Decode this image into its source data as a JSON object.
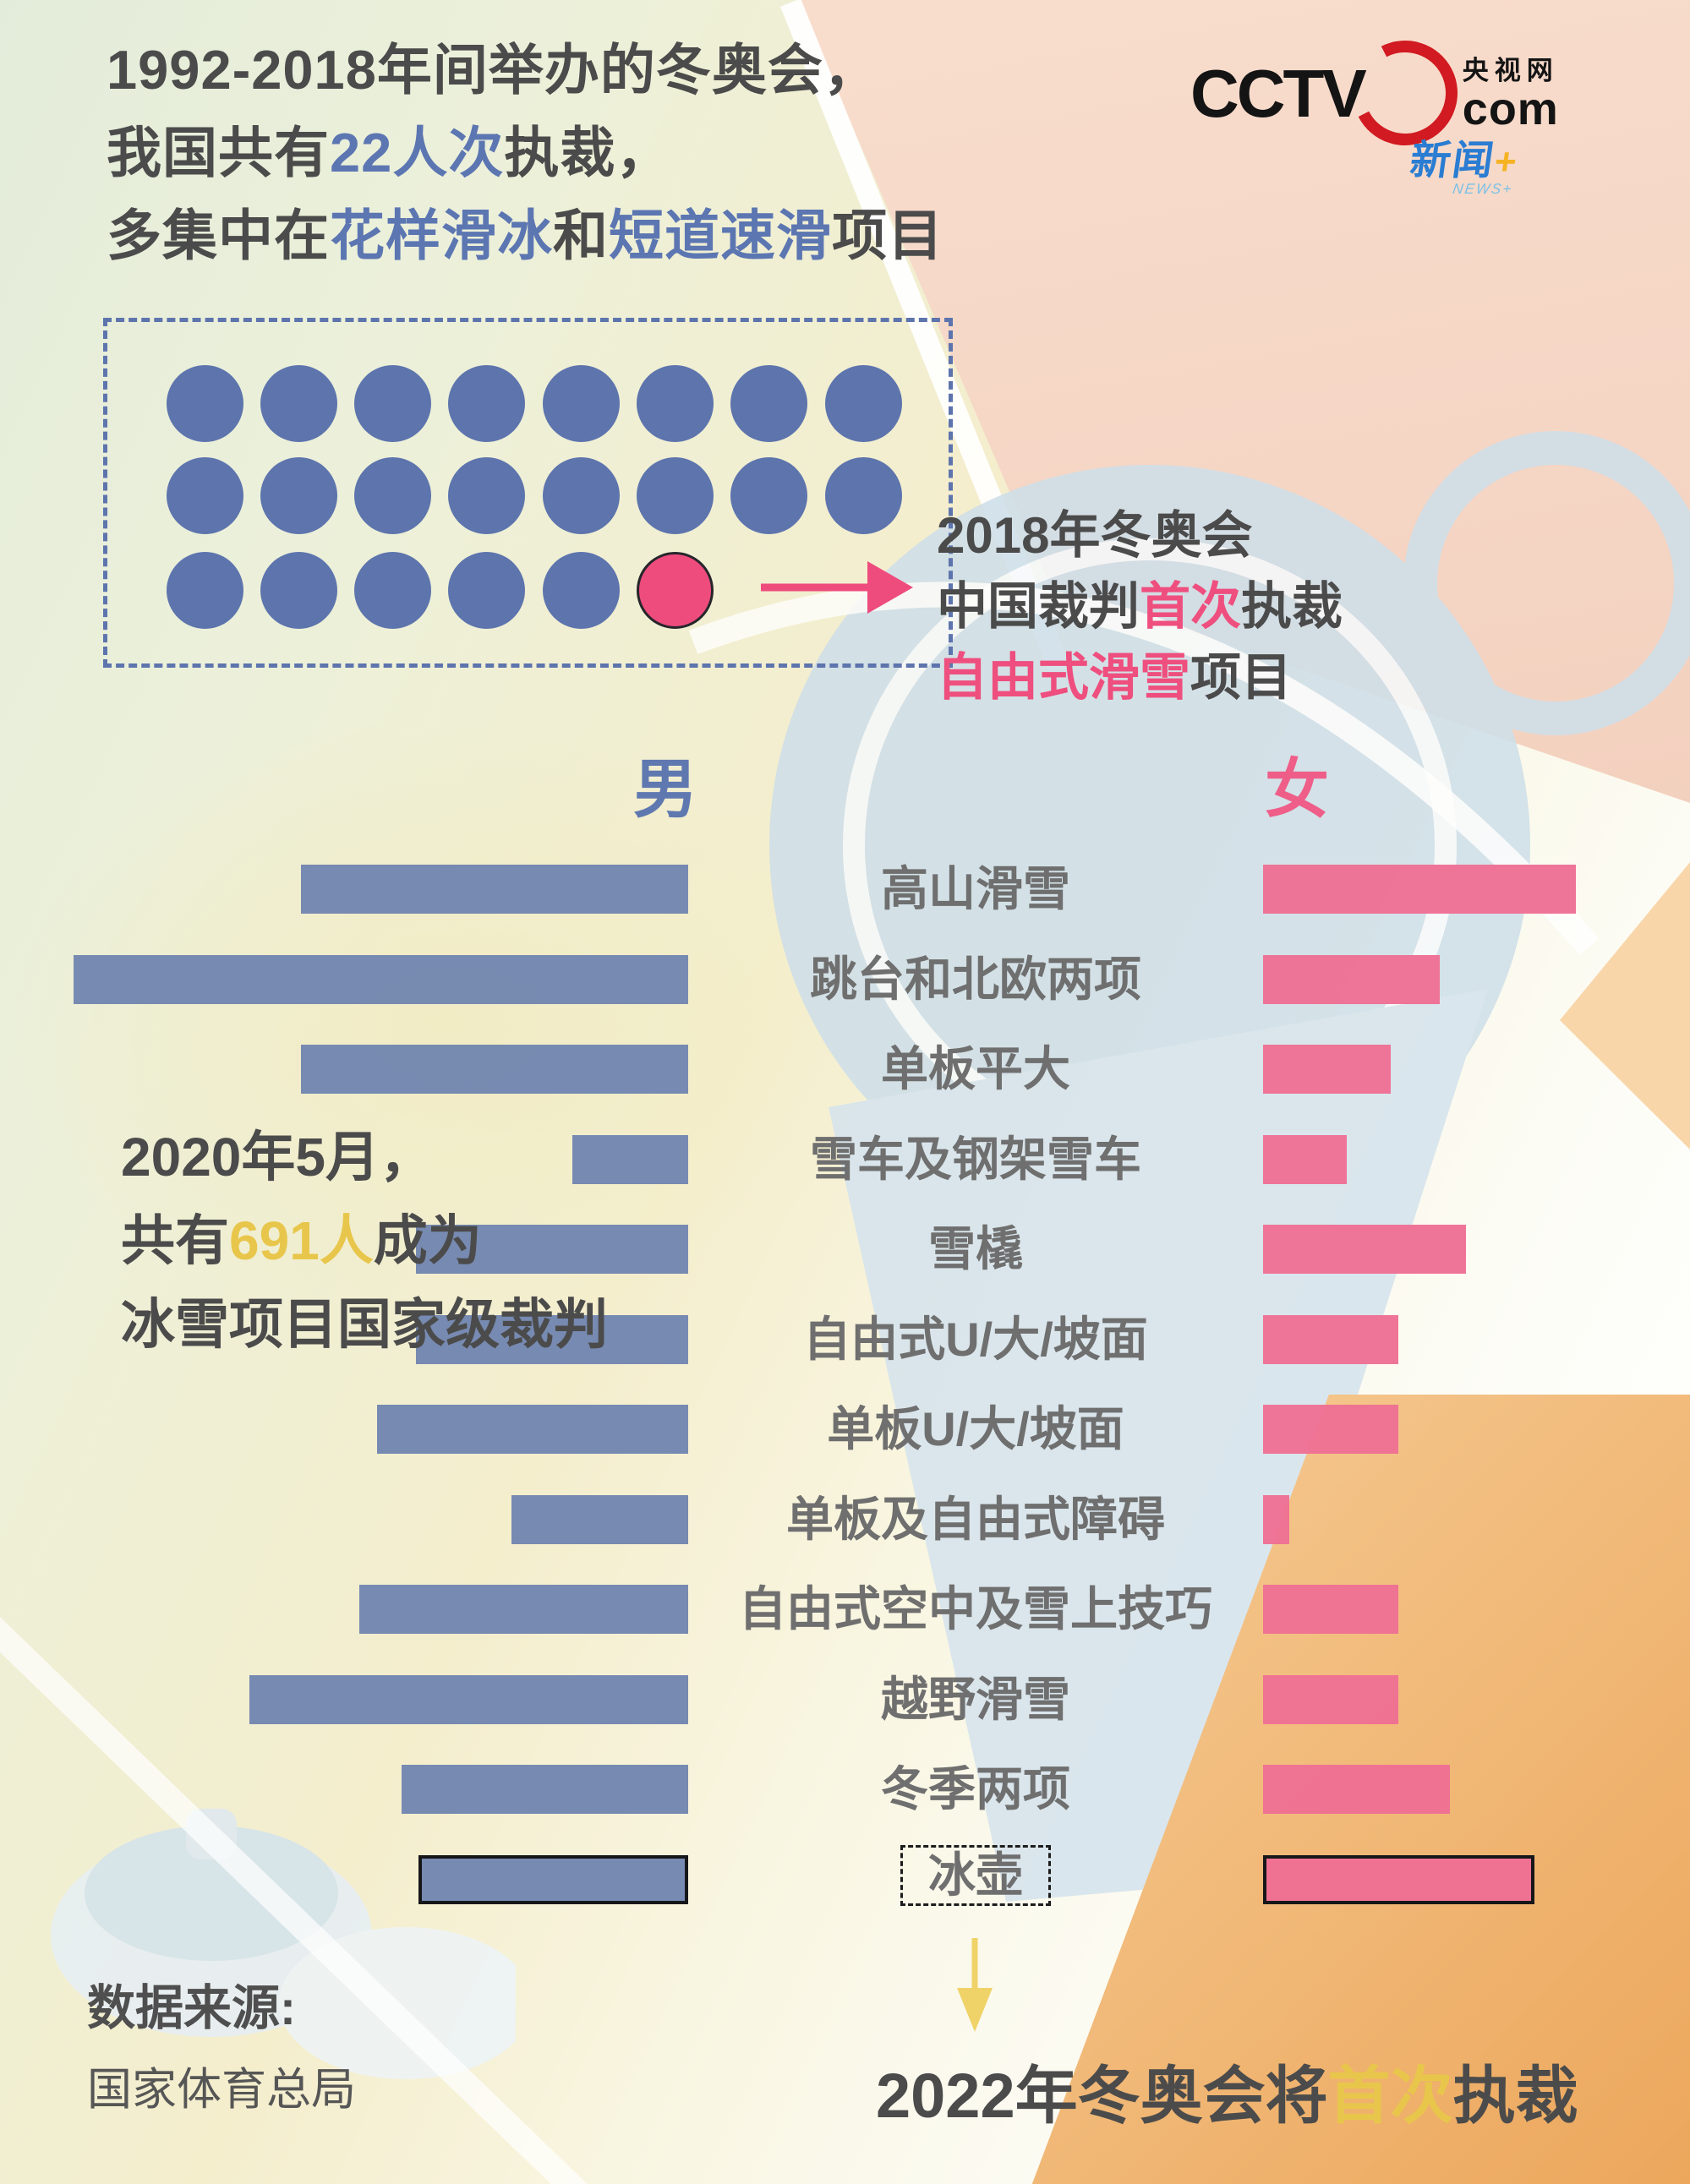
{
  "header": {
    "lines": [
      [
        {
          "t": "1992-2018年间举办的冬奥会，",
          "c": "dark"
        }
      ],
      [
        {
          "t": "我国共有",
          "c": "dark"
        },
        {
          "t": "22人次",
          "c": "blue"
        },
        {
          "t": "执裁，",
          "c": "dark"
        }
      ],
      [
        {
          "t": "多集中在",
          "c": "dark"
        },
        {
          "t": "花样滑冰",
          "c": "blue"
        },
        {
          "t": "和",
          "c": "dark"
        },
        {
          "t": "短道速滑",
          "c": "blue"
        },
        {
          "t": "项目",
          "c": "dark"
        }
      ]
    ]
  },
  "logo": {
    "cctv": "CCTV",
    "site": "央视网",
    "com": "com",
    "badge": "新闻",
    "badge_plus": "+",
    "badge_sub": "NEWS+"
  },
  "dots": {
    "total": 22,
    "rows": [
      8,
      8,
      6
    ],
    "highlight_last_dot": true,
    "blue": "#5d74ad",
    "pink": "#ee4c7d",
    "note_lines": [
      [
        {
          "t": "2018年冬奥会",
          "c": "dark"
        }
      ],
      [
        {
          "t": "中国裁判",
          "c": "dark"
        },
        {
          "t": "首次",
          "c": "pink"
        },
        {
          "t": "执裁",
          "c": "dark"
        }
      ],
      [
        {
          "t": "自由式滑雪",
          "c": "pink"
        },
        {
          "t": "项目",
          "c": "dark"
        }
      ]
    ]
  },
  "left_note": {
    "lines": [
      [
        {
          "t": "2020年5月，",
          "c": "dark"
        }
      ],
      [
        {
          "t": "共有",
          "c": "dark"
        },
        {
          "t": "691人",
          "c": "yellow"
        },
        {
          "t": "成为",
          "c": "dark"
        }
      ],
      [
        {
          "t": "冰雪项目国家级裁判",
          "c": "dark"
        }
      ]
    ]
  },
  "chart": {
    "male_header": "男",
    "female_header": "女",
    "male_color": "#7386b0",
    "female_color": "#ee6f94"
  },
  "chart_data": {
    "type": "bar",
    "orientation": "horizontal-diverging",
    "title": "冰雪项目国家级裁判 男/女 分布",
    "categories": [
      "高山滑雪",
      "跳台和北欧两项",
      "单板平大",
      "雪车及钢架雪车",
      "雪橇",
      "自由式U/大/坡面",
      "单板U/大/坡面",
      "单板及自由式障碍",
      "自由式空中及雪上技巧",
      "越野滑雪",
      "冬季两项",
      "冰壶"
    ],
    "series": [
      {
        "name": "男",
        "values": [
          458,
          727,
          458,
          137,
          322,
          322,
          368,
          209,
          389,
          519,
          339,
          319
        ]
      },
      {
        "name": "女",
        "values": [
          370,
          209,
          151,
          99,
          240,
          160,
          160,
          31,
          160,
          160,
          221,
          321
        ]
      }
    ],
    "units": "relative bar length in source pixels (no numeric axis shown in the figure)",
    "axis_visible": false,
    "legend_position": "column headers 男 / 女 above bars",
    "highlight_category": "冰壶",
    "highlight_note": "冰壶 bars drawn with black outline and category label boxed with dashed border"
  },
  "footer": {
    "source_label": "数据来源:",
    "source": "国家体育总局",
    "curling_note": [
      [
        {
          "t": "2022年冬奥会将",
          "c": "dark"
        },
        {
          "t": "首次",
          "c": "yellow"
        },
        {
          "t": "执裁",
          "c": "dark"
        }
      ]
    ]
  },
  "accent_colors": {
    "blue_text": "#5c76b2",
    "pink_text": "#ee4f7e",
    "yellow_text": "#e8c64b",
    "dark_text": "#4b4b4b",
    "label_gray": "#6f6f6f",
    "arrow_pink": "#ee4c7d",
    "arrow_yellow": "#efd368"
  }
}
